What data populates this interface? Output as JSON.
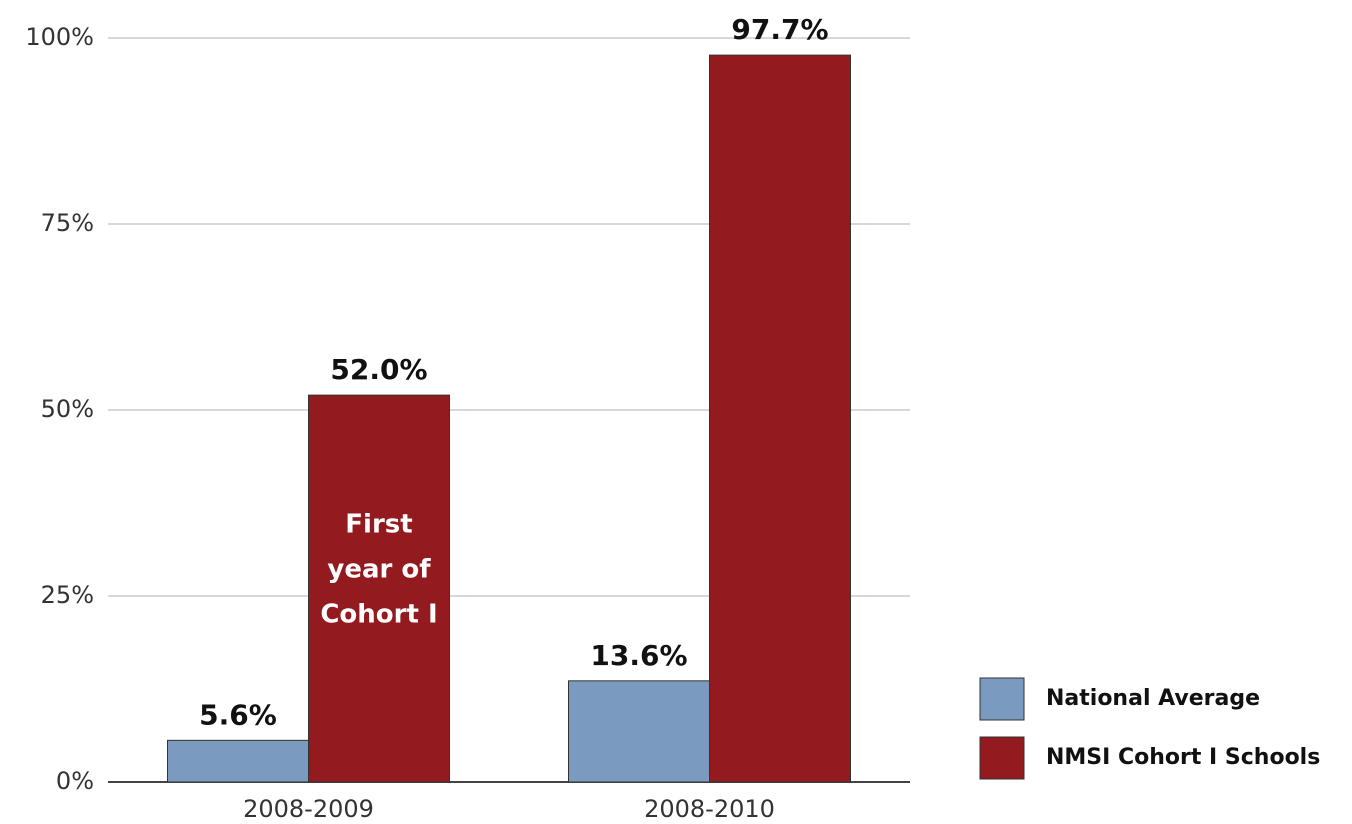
{
  "chart_data": {
    "type": "bar",
    "categories": [
      "2008-2009",
      "2008-2010"
    ],
    "series": [
      {
        "name": "National Average",
        "color": "#7a9bbf",
        "values": [
          5.6,
          13.6
        ],
        "value_labels": [
          "5.6%",
          "13.6%"
        ]
      },
      {
        "name": "NMSI Cohort I Schools",
        "color": "#931a1e",
        "values": [
          52.0,
          97.7
        ],
        "value_labels": [
          "52.0%",
          "97.7%"
        ]
      }
    ],
    "ylim": [
      0,
      100
    ],
    "yticks": [
      {
        "value": 0,
        "label": "0%"
      },
      {
        "value": 25,
        "label": "25%"
      },
      {
        "value": 50,
        "label": "50%"
      },
      {
        "value": 75,
        "label": "75%"
      },
      {
        "value": 100,
        "label": "100%"
      }
    ],
    "grid": true,
    "legend": "bottom-right",
    "annotation": {
      "lines": [
        "First",
        "year of",
        "Cohort I"
      ]
    }
  }
}
